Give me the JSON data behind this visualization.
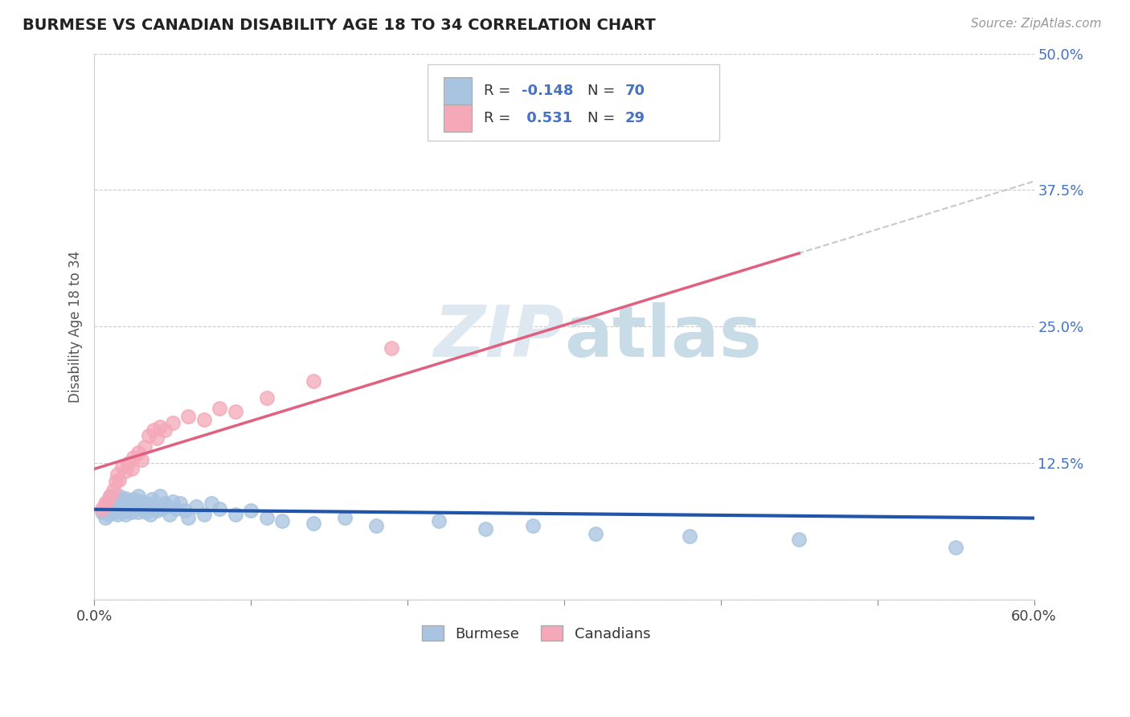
{
  "title": "BURMESE VS CANADIAN DISABILITY AGE 18 TO 34 CORRELATION CHART",
  "source": "Source: ZipAtlas.com",
  "ylabel": "Disability Age 18 to 34",
  "xlim": [
    0.0,
    0.6
  ],
  "ylim": [
    0.0,
    0.5
  ],
  "xticks": [
    0.0,
    0.1,
    0.2,
    0.3,
    0.4,
    0.5,
    0.6
  ],
  "xticklabels": [
    "0.0%",
    "",
    "",
    "",
    "",
    "",
    "60.0%"
  ],
  "yticks_right": [
    0.0,
    0.125,
    0.25,
    0.375,
    0.5
  ],
  "ytick_labels_right": [
    "",
    "12.5%",
    "25.0%",
    "37.5%",
    "50.0%"
  ],
  "burmese_R": -0.148,
  "burmese_N": 70,
  "canadian_R": 0.531,
  "canadian_N": 29,
  "burmese_color": "#a8c4e0",
  "canadian_color": "#f4a8b8",
  "burmese_line_color": "#2255aa",
  "canadian_line_color": "#e06080",
  "trendline_gray": "#c0bfc0",
  "background_color": "#ffffff",
  "legend_label_burmese": "Burmese",
  "legend_label_canadian": "Canadians",
  "burmese_x": [
    0.005,
    0.007,
    0.008,
    0.009,
    0.01,
    0.01,
    0.01,
    0.012,
    0.012,
    0.013,
    0.014,
    0.015,
    0.015,
    0.016,
    0.016,
    0.017,
    0.018,
    0.018,
    0.019,
    0.02,
    0.02,
    0.02,
    0.021,
    0.022,
    0.023,
    0.024,
    0.025,
    0.025,
    0.026,
    0.027,
    0.028,
    0.028,
    0.03,
    0.03,
    0.031,
    0.032,
    0.033,
    0.035,
    0.036,
    0.037,
    0.038,
    0.04,
    0.042,
    0.043,
    0.045,
    0.046,
    0.048,
    0.05,
    0.052,
    0.055,
    0.058,
    0.06,
    0.065,
    0.07,
    0.075,
    0.08,
    0.09,
    0.1,
    0.11,
    0.12,
    0.14,
    0.16,
    0.18,
    0.22,
    0.25,
    0.28,
    0.32,
    0.38,
    0.45,
    0.55
  ],
  "burmese_y": [
    0.08,
    0.075,
    0.085,
    0.078,
    0.09,
    0.095,
    0.082,
    0.088,
    0.092,
    0.08,
    0.085,
    0.078,
    0.09,
    0.082,
    0.095,
    0.087,
    0.08,
    0.092,
    0.085,
    0.078,
    0.088,
    0.093,
    0.082,
    0.085,
    0.09,
    0.08,
    0.085,
    0.092,
    0.083,
    0.088,
    0.08,
    0.095,
    0.083,
    0.09,
    0.085,
    0.088,
    0.08,
    0.085,
    0.078,
    0.092,
    0.088,
    0.082,
    0.095,
    0.083,
    0.088,
    0.085,
    0.078,
    0.09,
    0.083,
    0.088,
    0.082,
    0.075,
    0.085,
    0.078,
    0.088,
    0.083,
    0.078,
    0.082,
    0.075,
    0.072,
    0.07,
    0.075,
    0.068,
    0.072,
    0.065,
    0.068,
    0.06,
    0.058,
    0.055,
    0.048
  ],
  "canadian_x": [
    0.005,
    0.007,
    0.008,
    0.01,
    0.012,
    0.014,
    0.015,
    0.016,
    0.018,
    0.02,
    0.022,
    0.024,
    0.025,
    0.028,
    0.03,
    0.032,
    0.035,
    0.038,
    0.04,
    0.042,
    0.045,
    0.05,
    0.06,
    0.07,
    0.08,
    0.09,
    0.11,
    0.14,
    0.19
  ],
  "canadian_y": [
    0.083,
    0.088,
    0.09,
    0.095,
    0.1,
    0.108,
    0.115,
    0.11,
    0.122,
    0.118,
    0.125,
    0.12,
    0.13,
    0.135,
    0.128,
    0.14,
    0.15,
    0.155,
    0.148,
    0.158,
    0.155,
    0.162,
    0.168,
    0.165,
    0.175,
    0.172,
    0.185,
    0.2,
    0.23
  ]
}
